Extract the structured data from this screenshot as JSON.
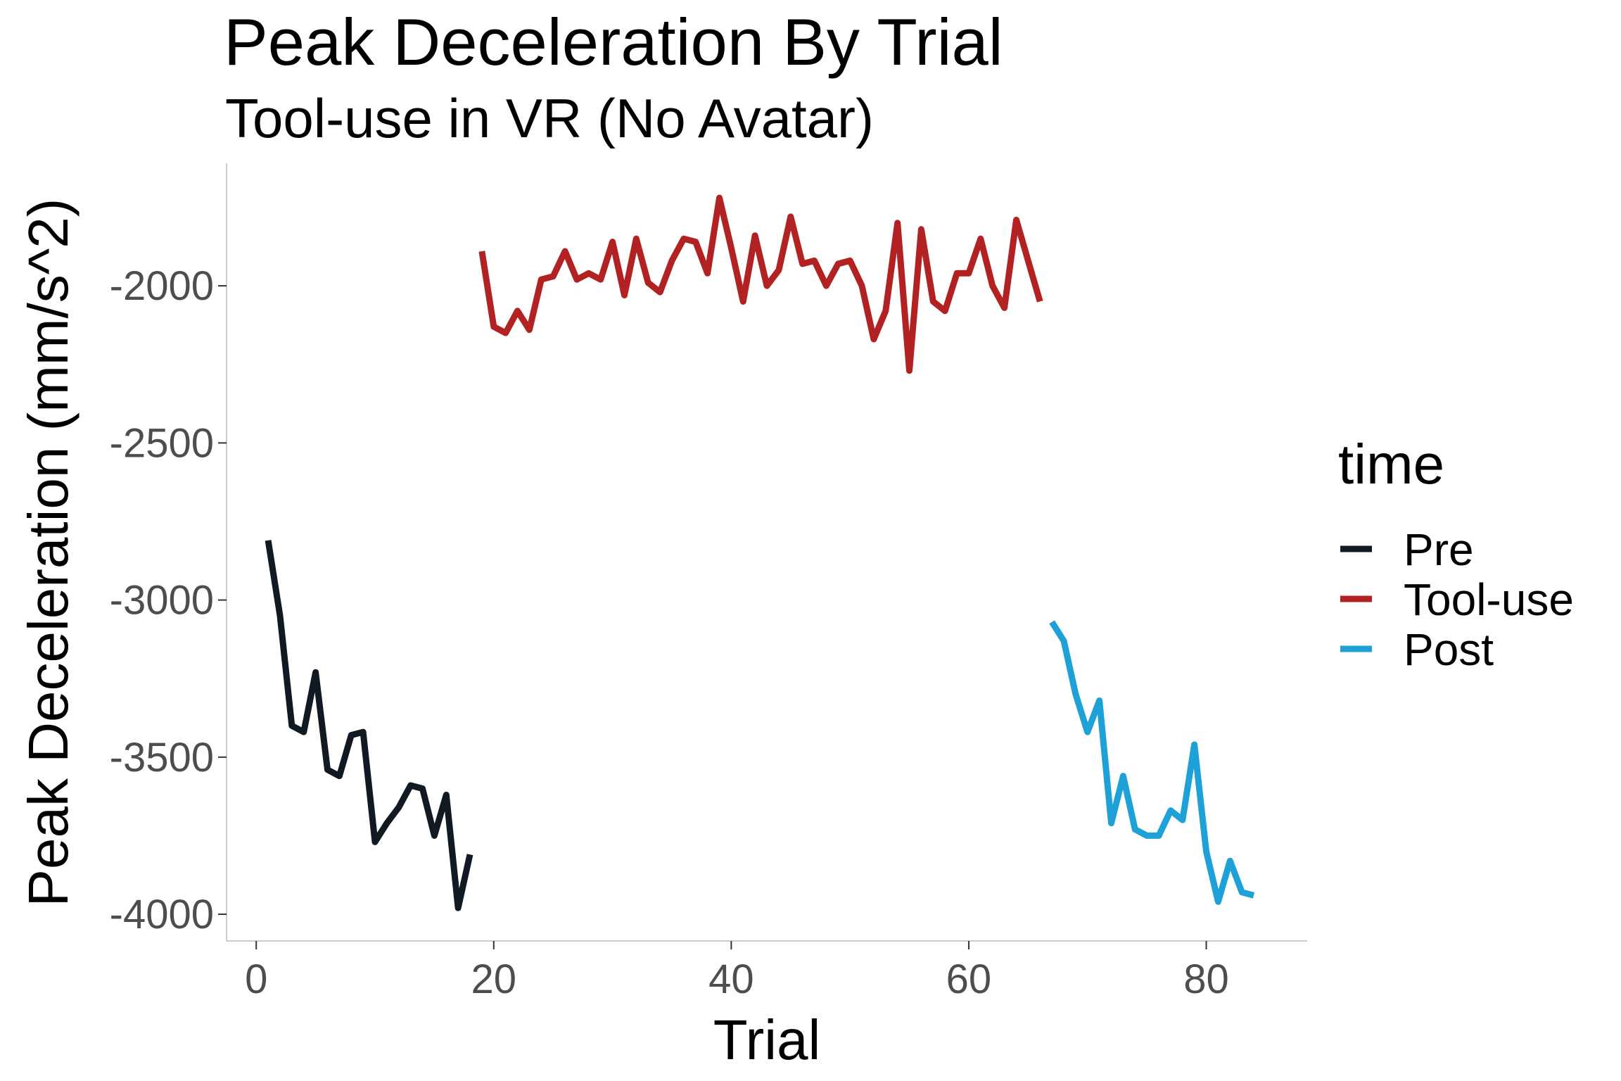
{
  "chart_data": {
    "type": "line",
    "title": "Peak Deceleration By Trial",
    "subtitle": "Tool-use in VR (No Avatar)",
    "xlabel": "Trial",
    "ylabel": "Peak Deceleration (mm/s^2)",
    "xlim": [
      -2.5,
      88.5
    ],
    "ylim": [
      -4085,
      -1610
    ],
    "x_ticks": [
      0,
      20,
      40,
      60,
      80
    ],
    "y_ticks": [
      -4000,
      -3500,
      -3000,
      -2500,
      -2000
    ],
    "grid": false,
    "legend": {
      "title": "time",
      "position": "right"
    },
    "series": [
      {
        "name": "Pre",
        "color": "#111a22",
        "x": [
          1,
          2,
          3,
          4,
          5,
          6,
          7,
          8,
          9,
          10,
          11,
          12,
          13,
          14,
          15,
          16,
          17,
          18
        ],
        "y": [
          -2810,
          -3050,
          -3400,
          -3420,
          -3230,
          -3540,
          -3560,
          -3430,
          -3420,
          -3770,
          -3710,
          -3660,
          -3590,
          -3600,
          -3750,
          -3620,
          -3980,
          -3810
        ]
      },
      {
        "name": "Tool-use",
        "color": "#b22222",
        "x": [
          19,
          20,
          21,
          22,
          23,
          24,
          25,
          26,
          27,
          28,
          29,
          30,
          31,
          32,
          33,
          34,
          35,
          36,
          37,
          38,
          39,
          40,
          41,
          42,
          43,
          44,
          45,
          46,
          47,
          48,
          49,
          50,
          51,
          52,
          53,
          54,
          55,
          56,
          57,
          58,
          59,
          60,
          61,
          62,
          63,
          64,
          65,
          66
        ],
        "y": [
          -1890,
          -2130,
          -2150,
          -2080,
          -2140,
          -1980,
          -1970,
          -1890,
          -1980,
          -1960,
          -1980,
          -1860,
          -2030,
          -1850,
          -1990,
          -2020,
          -1920,
          -1850,
          -1860,
          -1960,
          -1720,
          -1880,
          -2050,
          -1840,
          -2000,
          -1950,
          -1780,
          -1930,
          -1920,
          -2000,
          -1930,
          -1920,
          -2000,
          -2170,
          -2080,
          -1800,
          -2270,
          -1820,
          -2050,
          -2080,
          -1960,
          -1960,
          -1850,
          -2000,
          -2070,
          -1790,
          -1920,
          -2050
        ]
      },
      {
        "name": "Post",
        "color": "#1da1d6",
        "x": [
          67,
          68,
          69,
          70,
          71,
          72,
          73,
          74,
          75,
          76,
          77,
          78,
          79,
          80,
          81,
          82,
          83,
          84
        ],
        "y": [
          -3070,
          -3130,
          -3300,
          -3420,
          -3320,
          -3710,
          -3560,
          -3730,
          -3750,
          -3750,
          -3670,
          -3700,
          -3460,
          -3800,
          -3960,
          -3830,
          -3930,
          -3940
        ]
      }
    ]
  }
}
